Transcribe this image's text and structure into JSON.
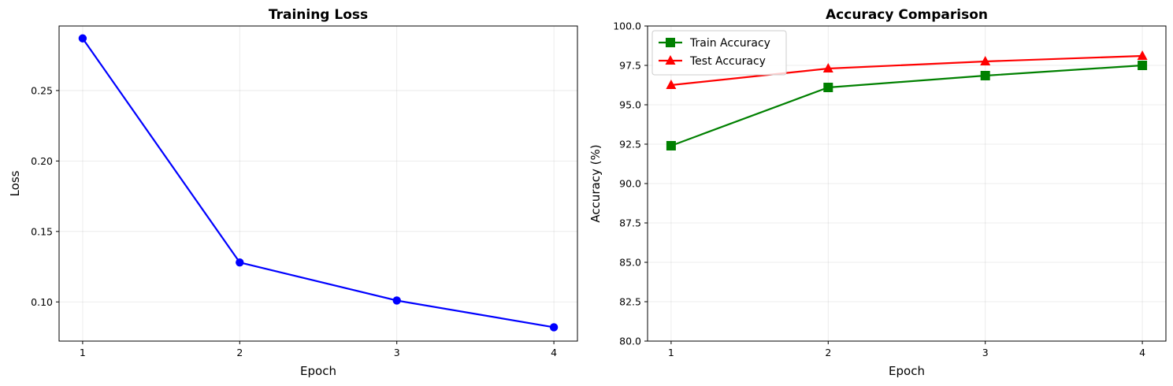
{
  "chart_data": [
    {
      "type": "line",
      "title": "Training Loss",
      "xlabel": "Epoch",
      "ylabel": "Loss",
      "x": [
        1,
        2,
        3,
        4
      ],
      "xlim": [
        0.85,
        4.15
      ],
      "ylim": [
        0.0722,
        0.2958
      ],
      "xticks": [
        1,
        2,
        3,
        4
      ],
      "yticks": [
        0.1,
        0.15,
        0.2,
        0.25
      ],
      "ytick_labels": [
        "0.10",
        "0.15",
        "0.20",
        "0.25"
      ],
      "grid": true,
      "series": [
        {
          "values": [
            0.287,
            0.128,
            0.101,
            0.082
          ],
          "color": "#0000ff",
          "marker": "circle"
        }
      ]
    },
    {
      "type": "line",
      "title": "Accuracy Comparison",
      "xlabel": "Epoch",
      "ylabel": "Accuracy (%)",
      "x": [
        1,
        2,
        3,
        4
      ],
      "xlim": [
        0.85,
        4.15
      ],
      "ylim": [
        80,
        100
      ],
      "xticks": [
        1,
        2,
        3,
        4
      ],
      "yticks": [
        80.0,
        82.5,
        85.0,
        87.5,
        90.0,
        92.5,
        95.0,
        97.5,
        100.0
      ],
      "ytick_labels": [
        "80.0",
        "82.5",
        "85.0",
        "87.5",
        "90.0",
        "92.5",
        "95.0",
        "97.5",
        "100.0"
      ],
      "grid": true,
      "legend": "top-left",
      "series": [
        {
          "name": "Train Accuracy",
          "values": [
            92.4,
            96.1,
            96.85,
            97.5
          ],
          "color": "#008000",
          "marker": "square"
        },
        {
          "name": "Test Accuracy",
          "values": [
            96.25,
            97.3,
            97.75,
            98.1
          ],
          "color": "#ff0000",
          "marker": "triangle"
        }
      ]
    }
  ]
}
